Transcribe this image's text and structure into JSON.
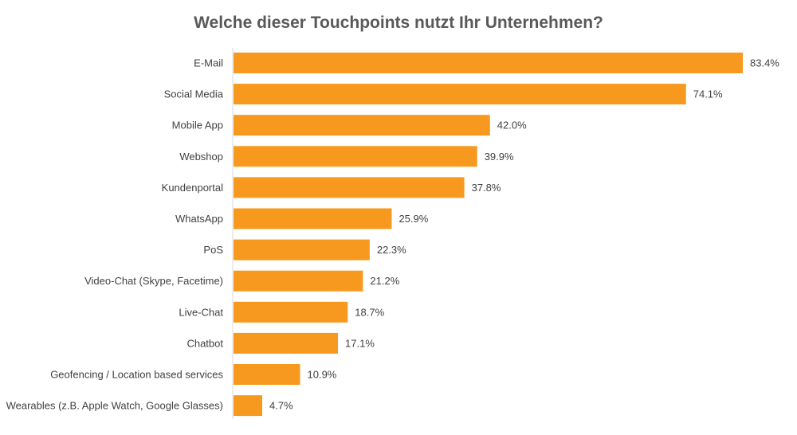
{
  "chart_data": {
    "type": "bar",
    "orientation": "horizontal",
    "title": "Welche dieser Touchpoints nutzt Ihr Unternehmen?",
    "xlabel": "",
    "ylabel": "",
    "categories": [
      "E-Mail",
      "Social Media",
      "Mobile App",
      "Webshop",
      "Kundenportal",
      "WhatsApp",
      "PoS",
      "Video-Chat (Skype, Facetime)",
      "Live-Chat",
      "Chatbot",
      "Geofencing / Location based services",
      "Wearables (z.B. Apple Watch, Google Glasses)"
    ],
    "values": [
      83.4,
      74.1,
      42.0,
      39.9,
      37.8,
      25.9,
      22.3,
      21.2,
      18.7,
      17.1,
      10.9,
      4.7
    ],
    "value_labels": [
      "83.4%",
      "74.1%",
      "42.0%",
      "39.9%",
      "37.8%",
      "25.9%",
      "22.3%",
      "21.2%",
      "18.7%",
      "17.1%",
      "10.9%",
      "4.7%"
    ],
    "xlim": [
      0,
      100
    ],
    "grid": false,
    "legend": "none",
    "colors": {
      "bar": "#F7991F",
      "axis": "#D9D9D9",
      "text": "#404040",
      "title": "#595959"
    }
  }
}
